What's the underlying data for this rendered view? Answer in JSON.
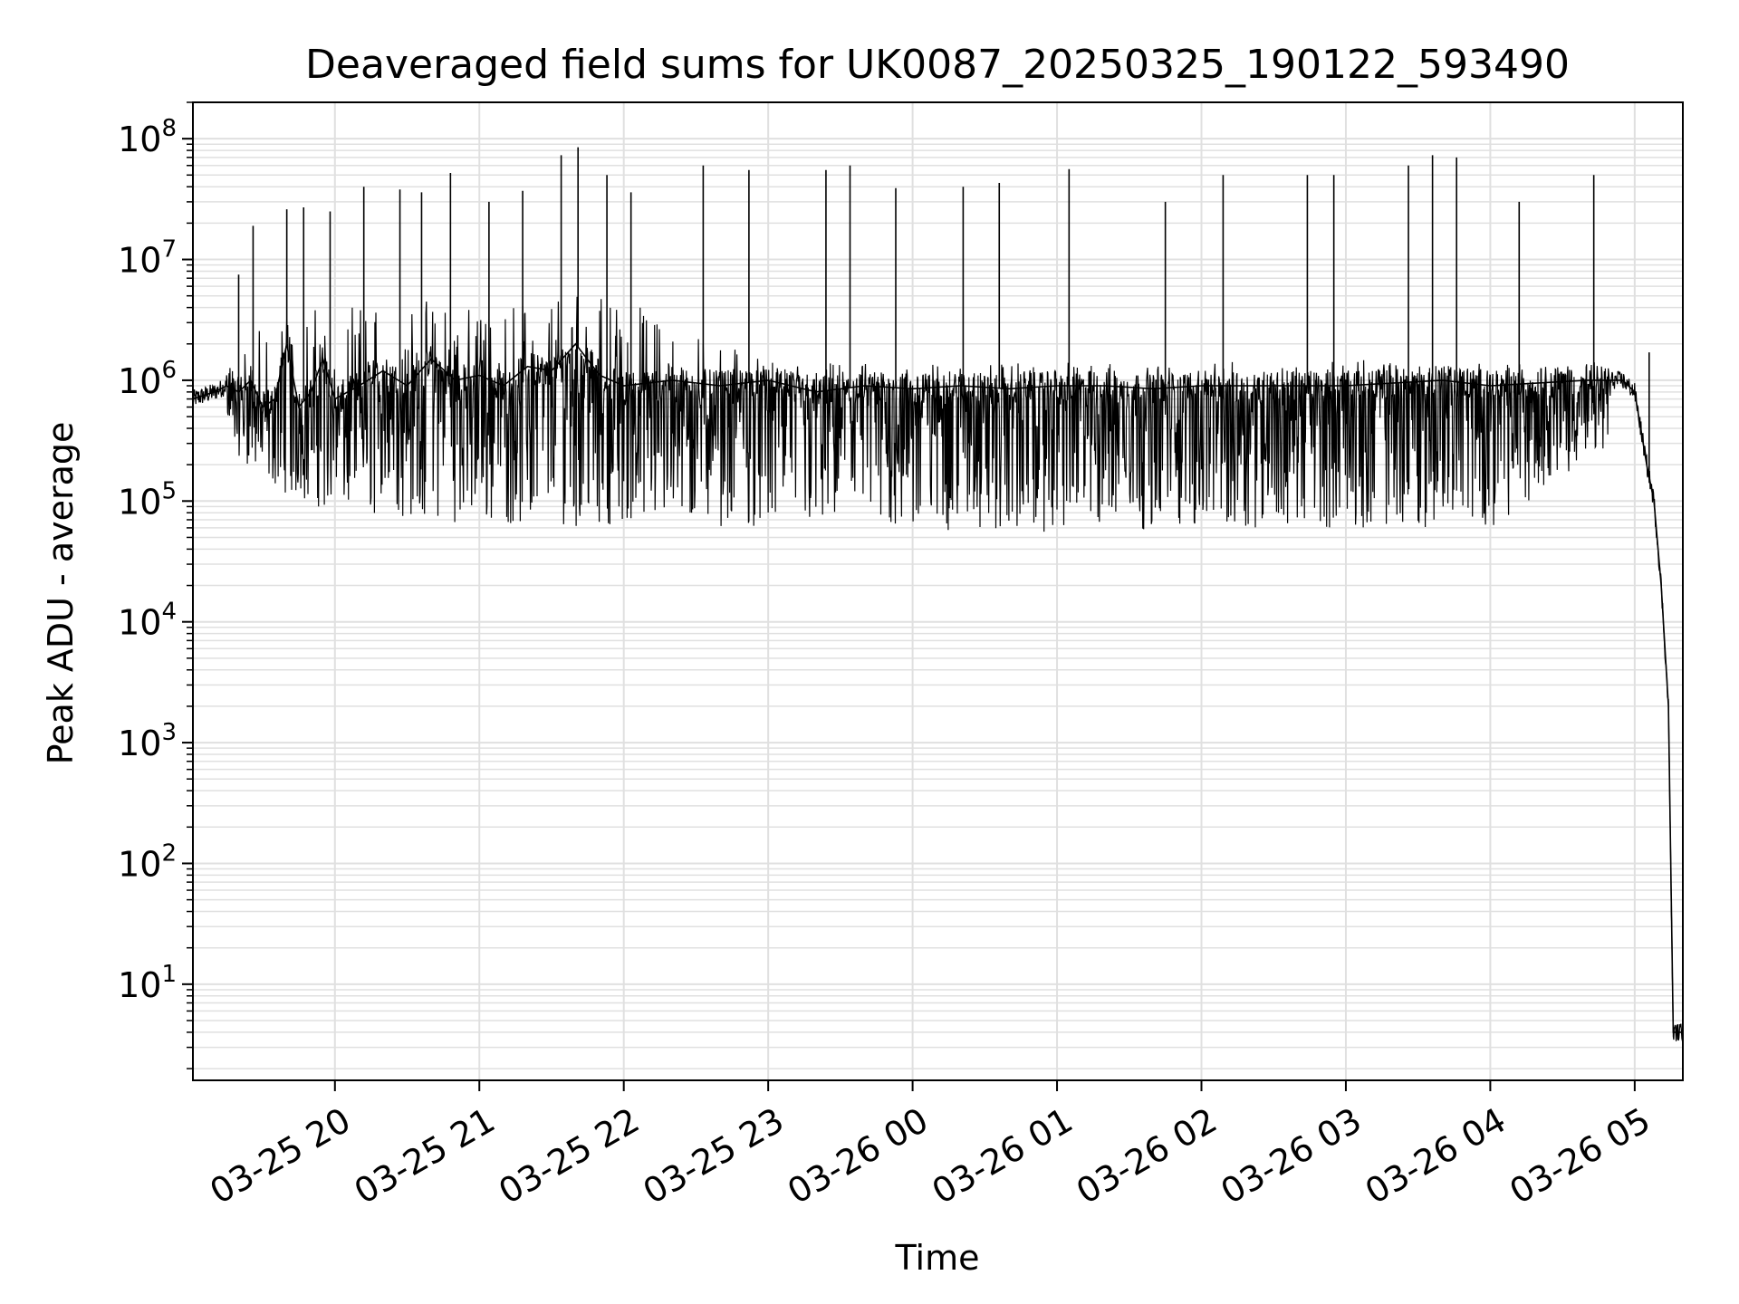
{
  "chart_data": {
    "type": "line",
    "title": "Deaveraged field sums for UK0087_20250325_190122_593490",
    "xlabel": "Time",
    "ylabel": "Peak ADU - average",
    "yscale": "log",
    "ylim": [
      1.6,
      200000000
    ],
    "xlim": [
      "2025-03-25 19:01",
      "2025-03-26 05:20"
    ],
    "grid": true,
    "line_color": "#000000",
    "grid_color": "#e0e0e0",
    "x_ticks": [
      {
        "value": "2025-03-25 20:00",
        "label": "03-25 20"
      },
      {
        "value": "2025-03-25 21:00",
        "label": "03-25 21"
      },
      {
        "value": "2025-03-25 22:00",
        "label": "03-25 22"
      },
      {
        "value": "2025-03-25 23:00",
        "label": "03-25 23"
      },
      {
        "value": "2025-03-26 00:00",
        "label": "03-26 00"
      },
      {
        "value": "2025-03-26 01:00",
        "label": "03-26 01"
      },
      {
        "value": "2025-03-26 02:00",
        "label": "03-26 02"
      },
      {
        "value": "2025-03-26 03:00",
        "label": "03-26 03"
      },
      {
        "value": "2025-03-26 04:00",
        "label": "03-26 04"
      },
      {
        "value": "2025-03-26 05:00",
        "label": "03-26 05"
      }
    ],
    "y_ticks": [
      {
        "value": 10,
        "base": "10",
        "exp": "1"
      },
      {
        "value": 100,
        "base": "10",
        "exp": "2"
      },
      {
        "value": 1000,
        "base": "10",
        "exp": "3"
      },
      {
        "value": 10000,
        "base": "10",
        "exp": "4"
      },
      {
        "value": 100000,
        "base": "10",
        "exp": "5"
      },
      {
        "value": 1000000,
        "base": "10",
        "exp": "6"
      },
      {
        "value": 10000000,
        "base": "10",
        "exp": "7"
      },
      {
        "value": 100000000,
        "base": "10",
        "exp": "8"
      }
    ],
    "series": [
      {
        "name": "",
        "x": [
          "2025-03-25 19:01",
          "2025-03-25 19:10",
          "2025-03-25 19:15",
          "2025-03-25 19:20",
          "2025-03-25 19:25",
          "2025-03-25 19:30",
          "2025-03-25 19:35",
          "2025-03-25 19:40",
          "2025-03-25 19:45",
          "2025-03-25 19:50",
          "2025-03-25 19:55",
          "2025-03-25 20:00",
          "2025-03-25 20:10",
          "2025-03-25 20:20",
          "2025-03-25 20:30",
          "2025-03-25 20:40",
          "2025-03-25 20:50",
          "2025-03-25 21:00",
          "2025-03-25 21:10",
          "2025-03-25 21:20",
          "2025-03-25 21:30",
          "2025-03-25 21:40",
          "2025-03-25 21:50",
          "2025-03-25 22:00",
          "2025-03-25 22:20",
          "2025-03-25 22:40",
          "2025-03-25 23:00",
          "2025-03-25 23:20",
          "2025-03-25 23:40",
          "2025-03-26 00:00",
          "2025-03-26 00:20",
          "2025-03-26 00:40",
          "2025-03-26 01:00",
          "2025-03-26 01:20",
          "2025-03-26 01:40",
          "2025-03-26 02:00",
          "2025-03-26 02:20",
          "2025-03-26 02:40",
          "2025-03-26 03:00",
          "2025-03-26 03:20",
          "2025-03-26 03:40",
          "2025-03-26 04:00",
          "2025-03-26 04:20",
          "2025-03-26 04:40",
          "2025-03-26 04:55",
          "2025-03-26 05:00",
          "2025-03-26 05:05",
          "2025-03-26 05:08",
          "2025-03-26 05:11",
          "2025-03-26 05:14",
          "2025-03-26 05:16",
          "2025-03-26 05:18",
          "2025-03-26 05:20"
        ],
        "y": [
          700000,
          800000,
          900000,
          800000,
          1000000,
          600000,
          700000,
          2000000,
          600000,
          800000,
          1500000,
          700000,
          900000,
          1200000,
          900000,
          1500000,
          1000000,
          1100000,
          900000,
          1300000,
          1200000,
          2000000,
          1100000,
          900000,
          1000000,
          900000,
          1000000,
          800000,
          900000,
          850000,
          900000,
          850000,
          900000,
          900000,
          850000,
          900000,
          900000,
          900000,
          900000,
          950000,
          1000000,
          900000,
          950000,
          1000000,
          1000000,
          800000,
          200000,
          100000,
          20000,
          2000,
          4,
          4,
          4
        ]
      }
    ],
    "envelope": {
      "x": [
        "2025-03-25 19:15",
        "2025-03-25 19:30",
        "2025-03-25 19:45",
        "2025-03-25 20:00",
        "2025-03-25 20:30",
        "2025-03-25 21:00",
        "2025-03-25 21:30",
        "2025-03-25 22:00",
        "2025-03-25 23:00",
        "2025-03-26 00:00",
        "2025-03-26 01:00",
        "2025-03-26 02:00",
        "2025-03-26 03:00",
        "2025-03-26 04:00",
        "2025-03-26 04:50"
      ],
      "upper": [
        1500000,
        3000000,
        4000000,
        4000000,
        5000000,
        4000000,
        6000000,
        5000000,
        1400000,
        1400000,
        1400000,
        1400000,
        1500000,
        1500000,
        1400000
      ],
      "lower": [
        300000,
        150000,
        100000,
        80000,
        70000,
        65000,
        60000,
        65000,
        60000,
        55000,
        55000,
        60000,
        60000,
        60000,
        300000
      ]
    },
    "spikes": [
      {
        "x": "2025-03-25 19:20",
        "y": 7500000
      },
      {
        "x": "2025-03-25 19:26",
        "y": 19000000
      },
      {
        "x": "2025-03-25 19:40",
        "y": 26000000
      },
      {
        "x": "2025-03-25 19:47",
        "y": 27000000
      },
      {
        "x": "2025-03-25 19:58",
        "y": 25000000
      },
      {
        "x": "2025-03-25 20:12",
        "y": 40000000
      },
      {
        "x": "2025-03-25 20:27",
        "y": 38000000
      },
      {
        "x": "2025-03-25 20:36",
        "y": 36000000
      },
      {
        "x": "2025-03-25 20:48",
        "y": 52000000
      },
      {
        "x": "2025-03-25 21:04",
        "y": 30000000
      },
      {
        "x": "2025-03-25 21:18",
        "y": 37000000
      },
      {
        "x": "2025-03-25 21:34",
        "y": 73000000
      },
      {
        "x": "2025-03-25 21:41",
        "y": 85000000
      },
      {
        "x": "2025-03-25 21:53",
        "y": 50000000
      },
      {
        "x": "2025-03-25 22:03",
        "y": 36000000
      },
      {
        "x": "2025-03-25 22:33",
        "y": 60000000
      },
      {
        "x": "2025-03-25 22:52",
        "y": 55000000
      },
      {
        "x": "2025-03-25 23:24",
        "y": 55000000
      },
      {
        "x": "2025-03-25 23:34",
        "y": 60000000
      },
      {
        "x": "2025-03-25 23:53",
        "y": 39000000
      },
      {
        "x": "2025-03-26 00:21",
        "y": 40000000
      },
      {
        "x": "2025-03-26 00:36",
        "y": 43000000
      },
      {
        "x": "2025-03-26 01:05",
        "y": 56000000
      },
      {
        "x": "2025-03-26 01:45",
        "y": 30000000
      },
      {
        "x": "2025-03-26 02:09",
        "y": 50000000
      },
      {
        "x": "2025-03-26 02:44",
        "y": 50000000
      },
      {
        "x": "2025-03-26 02:55",
        "y": 50000000
      },
      {
        "x": "2025-03-26 03:26",
        "y": 60000000
      },
      {
        "x": "2025-03-26 03:36",
        "y": 73000000
      },
      {
        "x": "2025-03-26 03:46",
        "y": 70000000
      },
      {
        "x": "2025-03-26 04:12",
        "y": 30000000
      },
      {
        "x": "2025-03-26 04:43",
        "y": 50000000
      },
      {
        "x": "2025-03-26 05:06",
        "y": 1700000
      }
    ]
  }
}
